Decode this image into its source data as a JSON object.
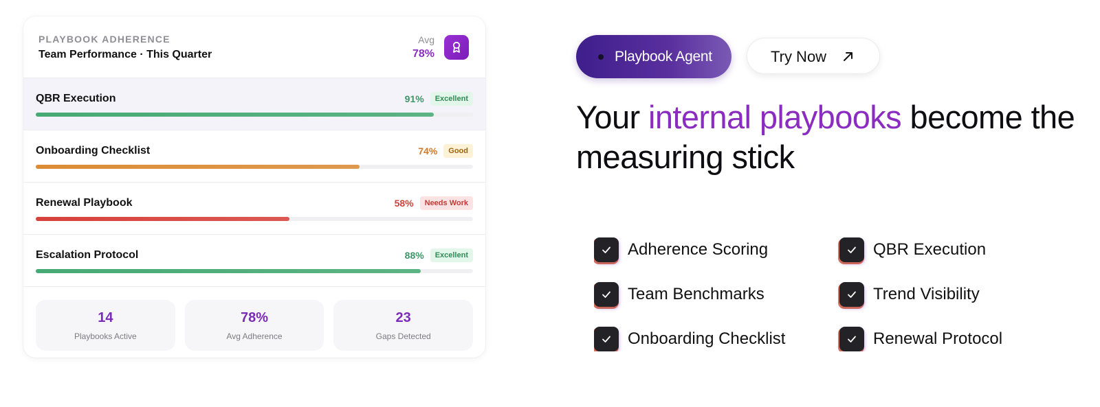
{
  "card": {
    "eyebrow": "PLAYBOOK ADHERENCE",
    "title": "Team Performance · This Quarter",
    "avg_label": "Avg",
    "avg_value": "78%",
    "icon": "award-icon",
    "rows": [
      {
        "name": "QBR Execution",
        "percent": "91%",
        "progress": 0.91,
        "badge": "Excellent",
        "pct_color": "#3f9467",
        "fill_color": "#46aa74",
        "badge_bg": "#e3f6ea",
        "badge_color": "#2f8c57"
      },
      {
        "name": "Onboarding Checklist",
        "percent": "74%",
        "progress": 0.74,
        "badge": "Good",
        "pct_color": "#d27a2c",
        "fill_color": "#dc8c35",
        "badge_bg": "#fdf2d6",
        "badge_color": "#9a6510"
      },
      {
        "name": "Renewal Playbook",
        "percent": "58%",
        "progress": 0.58,
        "badge": "Needs Work",
        "pct_color": "#d2403c",
        "fill_color": "#d8413c",
        "badge_bg": "#fbe3e3",
        "badge_color": "#c23a36"
      },
      {
        "name": "Escalation Protocol",
        "percent": "88%",
        "progress": 0.88,
        "badge": "Excellent",
        "pct_color": "#3f9467",
        "fill_color": "#46aa74",
        "badge_bg": "#e3f6ea",
        "badge_color": "#2f8c57"
      }
    ],
    "stats": [
      {
        "value": "14",
        "label": "Playbooks Active"
      },
      {
        "value": "78%",
        "label": "Avg Adherence"
      },
      {
        "value": "23",
        "label": "Gaps Detected"
      }
    ]
  },
  "cta": {
    "agent_label": "Playbook Agent",
    "try_label": "Try Now",
    "try_icon": "arrow-up-right-icon"
  },
  "headline": {
    "part1": "Your ",
    "accent": "internal playbooks",
    "part2": " become the measuring stick",
    "accent_color": "#8a2cc0"
  },
  "features": [
    "Adherence Scoring",
    "QBR Execution",
    "Team Benchmarks",
    "Trend Visibility",
    "Onboarding Checklist",
    "Renewal Protocol"
  ],
  "feature_icon": "check-icon"
}
